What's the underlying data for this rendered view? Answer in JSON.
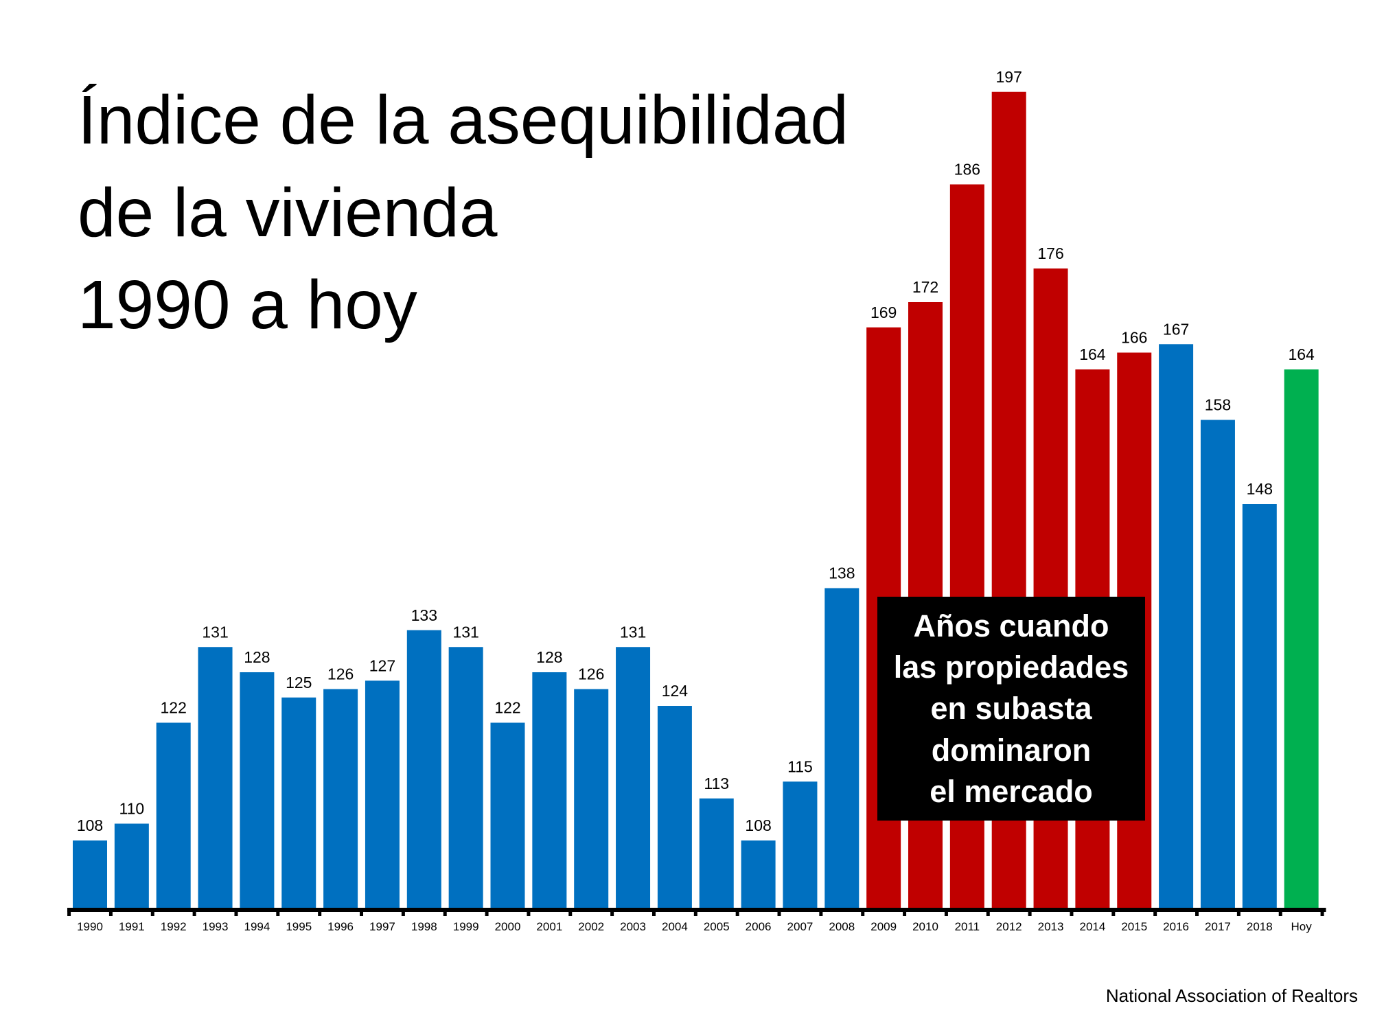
{
  "chart_data": {
    "type": "bar",
    "title": [
      "Índice de la asequibilidad",
      "de la vivienda",
      "1990 a hoy"
    ],
    "categories": [
      "1990",
      "1991",
      "1992",
      "1993",
      "1994",
      "1995",
      "1996",
      "1997",
      "1998",
      "1999",
      "2000",
      "2001",
      "2002",
      "2003",
      "2004",
      "2005",
      "2006",
      "2007",
      "2008",
      "2009",
      "2010",
      "2011",
      "2012",
      "2013",
      "2014",
      "2015",
      "2016",
      "2017",
      "2018",
      "Hoy"
    ],
    "values": [
      108,
      110,
      122,
      131,
      128,
      125,
      126,
      127,
      133,
      131,
      122,
      128,
      126,
      131,
      124,
      113,
      108,
      115,
      138,
      169,
      172,
      186,
      197,
      176,
      164,
      166,
      167,
      158,
      148,
      164
    ],
    "bar_colors": [
      "blue",
      "blue",
      "blue",
      "blue",
      "blue",
      "blue",
      "blue",
      "blue",
      "blue",
      "blue",
      "blue",
      "blue",
      "blue",
      "blue",
      "blue",
      "blue",
      "blue",
      "blue",
      "blue",
      "red",
      "red",
      "red",
      "red",
      "red",
      "red",
      "red",
      "blue",
      "blue",
      "blue",
      "green"
    ],
    "colors": {
      "blue": "#0070C0",
      "red": "#C00000",
      "green": "#00B050"
    },
    "ylim": [
      100,
      200
    ],
    "xlabel": "",
    "ylabel": "",
    "grid": false,
    "data_labels": true,
    "annotation": [
      "Años cuando",
      "las propiedades",
      "en subasta",
      "dominaron",
      "el mercado"
    ],
    "source": "National Association of Realtors"
  }
}
